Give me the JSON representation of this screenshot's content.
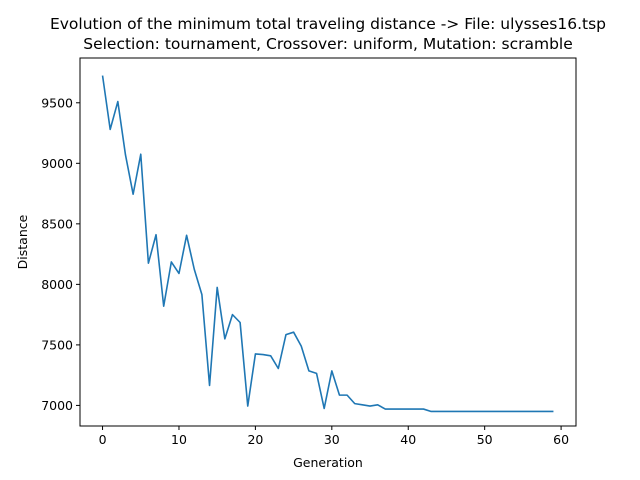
{
  "chart_data": {
    "type": "line",
    "title": "Evolution of the minimum total traveling distance -> File: ulysses16.tsp",
    "subtitle": "Selection: tournament, Crossover: uniform, Mutation: scramble",
    "xlabel": "Generation",
    "ylabel": "Distance",
    "xlim": [
      -2.95,
      61.95
    ],
    "ylim": [
      6830,
      9870
    ],
    "xticks": [
      0,
      10,
      20,
      30,
      40,
      50,
      60
    ],
    "yticks": [
      7000,
      7500,
      8000,
      8500,
      9000,
      9500
    ],
    "grid": false,
    "color": "#1f77b4",
    "x": [
      0,
      1,
      2,
      3,
      4,
      5,
      6,
      7,
      8,
      9,
      10,
      11,
      12,
      13,
      14,
      15,
      16,
      17,
      18,
      19,
      20,
      21,
      22,
      23,
      24,
      25,
      26,
      27,
      28,
      29,
      30,
      31,
      32,
      33,
      34,
      35,
      36,
      37,
      38,
      39,
      40,
      41,
      42,
      43,
      44,
      45,
      46,
      47,
      48,
      49,
      50,
      51,
      52,
      53,
      54,
      55,
      56,
      57,
      58,
      59
    ],
    "y": [
      9725,
      9280,
      9510,
      9070,
      8745,
      9075,
      8175,
      8410,
      7820,
      8185,
      8090,
      8405,
      8125,
      7915,
      7165,
      7975,
      7550,
      7750,
      7685,
      6995,
      7425,
      7420,
      7410,
      7305,
      7585,
      7605,
      7490,
      7285,
      7265,
      6975,
      7285,
      7085,
      7085,
      7015,
      7005,
      6995,
      7005,
      6970,
      6970,
      6970,
      6970,
      6970,
      6970,
      6950,
      6950,
      6950,
      6950,
      6950,
      6950,
      6950,
      6950,
      6950,
      6950,
      6950,
      6950,
      6950,
      6950,
      6950,
      6950,
      6950
    ]
  }
}
